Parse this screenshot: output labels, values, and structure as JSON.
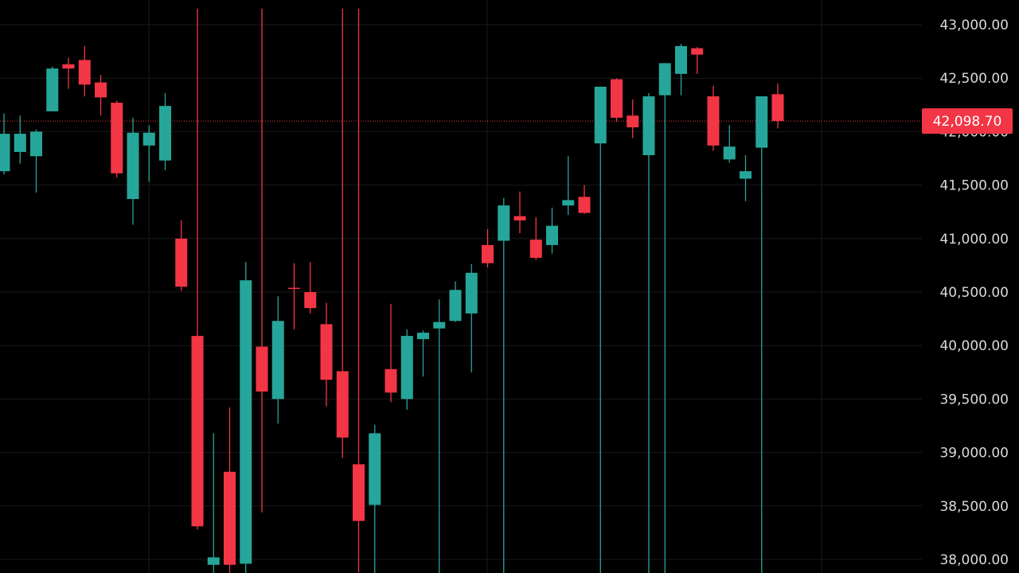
{
  "chart_data": {
    "type": "candlestick",
    "title": "",
    "xlabel": "",
    "ylabel": "",
    "ylim": [
      37900,
      43150
    ],
    "grid": true,
    "y_ticks": [
      "43,000.00",
      "42,500.00",
      "41,500.00",
      "41,000.00",
      "40,500.00",
      "40,000.00",
      "39,500.00",
      "39,000.00",
      "38,500.00",
      "38,000.00"
    ],
    "y_tick_values": [
      43000,
      42500,
      41500,
      41000,
      40500,
      40000,
      39500,
      39000,
      38500,
      38000
    ],
    "y_tick_partial": "42,000.00",
    "current_price": 42098.7,
    "current_price_label": "42,098.70",
    "colors": {
      "up": "#26a69a",
      "down": "#f23645",
      "background": "#000000",
      "grid": "#1a1a1a",
      "price_line": "#f23645"
    },
    "candles": [
      {
        "o": 41630,
        "h": 42170,
        "l": 41600,
        "c": 41980
      },
      {
        "o": 41810,
        "h": 42150,
        "l": 41700,
        "c": 41980
      },
      {
        "o": 41770,
        "h": 42020,
        "l": 41430,
        "c": 42000
      },
      {
        "o": 42190,
        "h": 42610,
        "l": 42190,
        "c": 42590
      },
      {
        "o": 42630,
        "h": 42690,
        "l": 42400,
        "c": 42590
      },
      {
        "o": 42670,
        "h": 42800,
        "l": 42330,
        "c": 42440
      },
      {
        "o": 42460,
        "h": 42530,
        "l": 42150,
        "c": 42320
      },
      {
        "o": 42270,
        "h": 42290,
        "l": 41570,
        "c": 41610
      },
      {
        "o": 41370,
        "h": 42130,
        "l": 41130,
        "c": 41990
      },
      {
        "o": 41870,
        "h": 42060,
        "l": 41530,
        "c": 41990
      },
      {
        "o": 41730,
        "h": 42360,
        "l": 41640,
        "c": 42240
      },
      {
        "o": 41000,
        "h": 41170,
        "l": 40510,
        "c": 40550
      },
      {
        "o": 40090,
        "h": null,
        "l": 38280,
        "c": 38310
      },
      {
        "o": 37950,
        "h": 39180,
        "l": null,
        "c": 38020
      },
      {
        "o": 38820,
        "h": 39420,
        "l": null,
        "c": 37950
      },
      {
        "o": 37960,
        "h": 40780,
        "l": null,
        "c": 40610
      },
      {
        "o": 39990,
        "h": null,
        "l": 38440,
        "c": 39570
      },
      {
        "o": 39500,
        "h": 40460,
        "l": 39270,
        "c": 40230
      },
      {
        "o": 40540,
        "h": 40770,
        "l": 40150,
        "c": 40530
      },
      {
        "o": 40500,
        "h": 40780,
        "l": 40300,
        "c": 40350
      },
      {
        "o": 40200,
        "h": 40400,
        "l": 39430,
        "c": 39680
      },
      {
        "o": 39760,
        "h": null,
        "l": 38950,
        "c": 39140
      },
      {
        "o": 38890,
        "h": null,
        "l": 37880,
        "c": 38360
      },
      {
        "o": 38510,
        "h": 39260,
        "l": null,
        "c": 39180
      },
      {
        "o": 39780,
        "h": 40390,
        "l": 39470,
        "c": 39560
      },
      {
        "o": 39500,
        "h": 40150,
        "l": 39400,
        "c": 40090
      },
      {
        "o": 40060,
        "h": 40140,
        "l": 39710,
        "c": 40120
      },
      {
        "o": 40160,
        "h": 40430,
        "l": null,
        "c": 40220
      },
      {
        "o": 40230,
        "h": 40600,
        "l": 40220,
        "c": 40520
      },
      {
        "o": 40300,
        "h": 40760,
        "l": 39750,
        "c": 40680
      },
      {
        "o": 40940,
        "h": 41090,
        "l": 40730,
        "c": 40770
      },
      {
        "o": 40980,
        "h": 41380,
        "l": null,
        "c": 41310
      },
      {
        "o": 41210,
        "h": 41440,
        "l": 41050,
        "c": 41170
      },
      {
        "o": 40990,
        "h": 41200,
        "l": 40800,
        "c": 40820
      },
      {
        "o": 40940,
        "h": 41290,
        "l": 40860,
        "c": 41120
      },
      {
        "o": 41310,
        "h": 41770,
        "l": 41220,
        "c": 41360
      },
      {
        "o": 41390,
        "h": 41500,
        "l": 41230,
        "c": 41240
      },
      {
        "o": 41890,
        "h": 42420,
        "l": null,
        "c": 42420
      },
      {
        "o": 42490,
        "h": 42500,
        "l": 42090,
        "c": 42130
      },
      {
        "o": 42150,
        "h": 42300,
        "l": 41940,
        "c": 42040
      },
      {
        "o": 41780,
        "h": 42360,
        "l": null,
        "c": 42330
      },
      {
        "o": 42340,
        "h": 42640,
        "l": null,
        "c": 42640
      },
      {
        "o": 42540,
        "h": 42820,
        "l": 42340,
        "c": 42800
      },
      {
        "o": 42780,
        "h": 42790,
        "l": 42540,
        "c": 42720
      },
      {
        "o": 42330,
        "h": 42430,
        "l": 41820,
        "c": 41870
      },
      {
        "o": 41740,
        "h": 42060,
        "l": 41710,
        "c": 41860
      },
      {
        "o": 41560,
        "h": 41780,
        "l": 41350,
        "c": 41630
      },
      {
        "o": 41850,
        "h": 42330,
        "l": null,
        "c": 42330
      },
      {
        "o": 42350,
        "h": 42450,
        "l": 42030,
        "c": 42100
      }
    ]
  }
}
